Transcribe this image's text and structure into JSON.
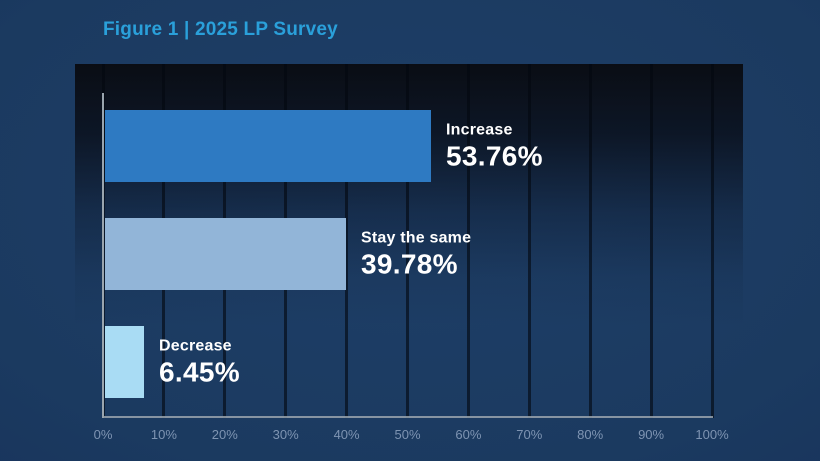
{
  "title": {
    "text": "Figure 1 | 2025 LP Survey",
    "color": "#2aa0da"
  },
  "chart_data": {
    "type": "bar",
    "orientation": "horizontal",
    "title": "Figure 1 | 2025 LP Survey",
    "categories": [
      "Increase",
      "Stay the same",
      "Decrease"
    ],
    "values": [
      53.76,
      39.78,
      6.45
    ],
    "value_labels": [
      "53.76%",
      "39.78%",
      "6.45%"
    ],
    "bar_colors": [
      "#2e7ac2",
      "#92b5d8",
      "#a9dcf4"
    ],
    "xlim": [
      0,
      100
    ],
    "x_ticks": [
      0,
      10,
      20,
      30,
      40,
      50,
      60,
      70,
      80,
      90,
      100
    ],
    "x_tick_labels": [
      "0%",
      "10%",
      "20%",
      "30%",
      "40%",
      "50%",
      "60%",
      "70%",
      "80%",
      "90%",
      "100%"
    ],
    "grid": "vertical",
    "legend": "none",
    "label_text_color": "#ffffff",
    "tick_text_color": "#7e94b2",
    "plot_bg_top_color": "#0a0d14",
    "page_bg_color": "#1b3a60"
  }
}
